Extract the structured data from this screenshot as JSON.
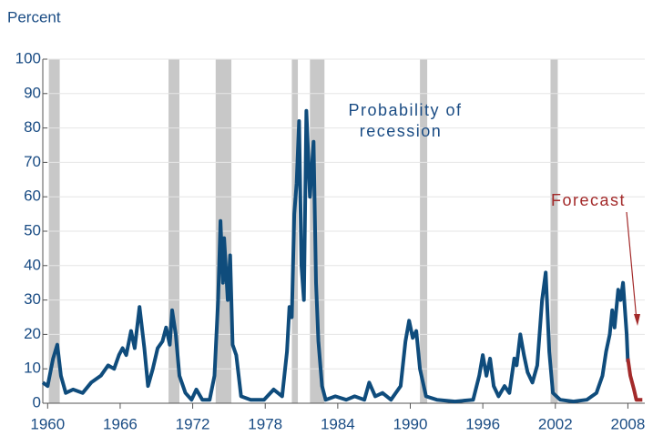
{
  "chart_data": {
    "type": "line",
    "y_label": "Percent",
    "xlim": [
      1959.6,
      2009.4
    ],
    "ylim": [
      0,
      100
    ],
    "xticks": [
      1960,
      1966,
      1972,
      1978,
      1984,
      1990,
      1996,
      2002,
      2008
    ],
    "yticks": [
      0,
      10,
      20,
      30,
      40,
      50,
      60,
      70,
      80,
      90,
      100
    ],
    "grid": true,
    "recession_color": "#c8c8c8",
    "recessions": [
      [
        1960.1,
        1961.0
      ],
      [
        1970.0,
        1970.9
      ],
      [
        1973.9,
        1975.2
      ],
      [
        1980.2,
        1980.7
      ],
      [
        1981.7,
        1982.9
      ],
      [
        1990.8,
        1991.4
      ],
      [
        2001.6,
        2002.2
      ]
    ],
    "series": [
      {
        "color": "#0f4c7c",
        "x": [
          1959.6,
          1960.0,
          1960.45,
          1960.8,
          1961.1,
          1961.5,
          1962.1,
          1962.9,
          1963.6,
          1964.4,
          1965.0,
          1965.5,
          1965.9,
          1966.2,
          1966.5,
          1966.9,
          1967.2,
          1967.6,
          1968.0,
          1968.3,
          1968.7,
          1969.1,
          1969.5,
          1969.8,
          1970.1,
          1970.3,
          1970.6,
          1970.9,
          1971.4,
          1971.9,
          1972.3,
          1972.8,
          1973.4,
          1973.8,
          1974.1,
          1974.3,
          1974.5,
          1974.6,
          1974.9,
          1975.1,
          1975.3,
          1975.6,
          1976.0,
          1976.8,
          1977.9,
          1978.7,
          1979.4,
          1979.8,
          1980.0,
          1980.2,
          1980.4,
          1980.6,
          1980.8,
          1981.0,
          1981.2,
          1981.4,
          1981.7,
          1982.0,
          1982.2,
          1982.4,
          1982.7,
          1983.0,
          1983.8,
          1984.7,
          1985.4,
          1986.2,
          1986.6,
          1987.1,
          1987.7,
          1988.4,
          1989.2,
          1989.6,
          1989.9,
          1990.2,
          1990.5,
          1990.8,
          1991.3,
          1992.2,
          1993.7,
          1995.2,
          1995.7,
          1996.0,
          1996.3,
          1996.6,
          1996.9,
          1997.3,
          1997.8,
          1998.2,
          1998.6,
          1998.8,
          1999.1,
          1999.4,
          1999.7,
          2000.1,
          2000.5,
          2000.9,
          2001.2,
          2001.5,
          2001.8,
          2002.4,
          2003.5,
          2004.6,
          2005.4,
          2005.9,
          2006.2,
          2006.5,
          2006.7,
          2006.9,
          2007.2,
          2007.4,
          2007.6,
          2007.9,
          2008.0
        ],
        "values": [
          6,
          5,
          13,
          17,
          8,
          3,
          4,
          3,
          6,
          8,
          11,
          10,
          14,
          16,
          14,
          21,
          16,
          28,
          16,
          5,
          10,
          16,
          18,
          22,
          17,
          27,
          20,
          8,
          3,
          1,
          4,
          1,
          1,
          8,
          30,
          53,
          35,
          48,
          30,
          43,
          17,
          14,
          2,
          1,
          1,
          4,
          2,
          15,
          28,
          25,
          55,
          64,
          82,
          40,
          30,
          85,
          60,
          76,
          35,
          18,
          5,
          1,
          2,
          1,
          2,
          1,
          6,
          2,
          3,
          1,
          5,
          18,
          24,
          19,
          21,
          10,
          2,
          1,
          0.5,
          1,
          8,
          14,
          8,
          13,
          5,
          2,
          5,
          3,
          13,
          11,
          20,
          14,
          9,
          6,
          11,
          30,
          38,
          15,
          3,
          1,
          0.5,
          1,
          3,
          8,
          15,
          20,
          27,
          22,
          33,
          30,
          35,
          20,
          12
        ]
      },
      {
        "color": "#a32a2a",
        "x": [
          2008.0,
          2008.2,
          2008.5,
          2008.7,
          2009.2
        ],
        "values": [
          13,
          8,
          4,
          1,
          1
        ]
      }
    ],
    "annotations": [
      {
        "text": [
          "Probability of",
          "recession"
        ]
      },
      {
        "text": [
          "Forecast"
        ]
      }
    ]
  }
}
